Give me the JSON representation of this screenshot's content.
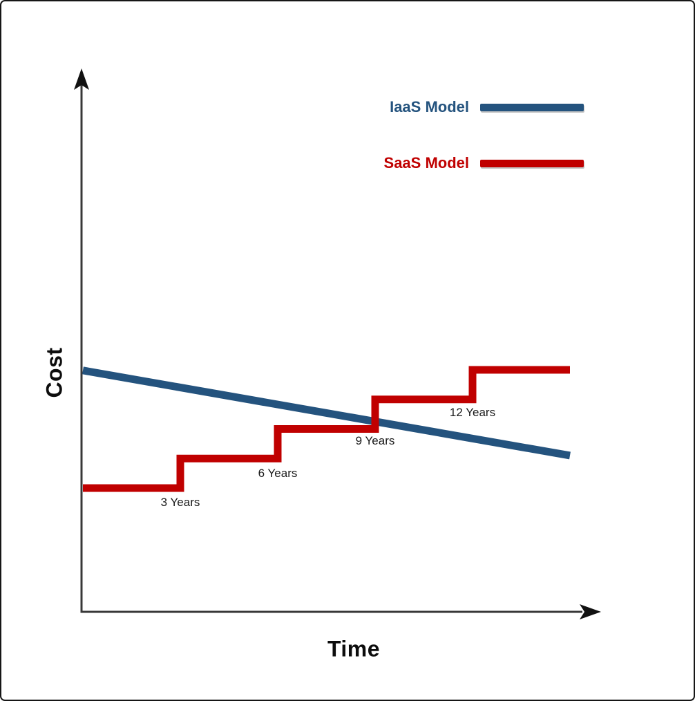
{
  "window": {
    "background": "#ffffff",
    "border_color": "#161616"
  },
  "chart_data": {
    "type": "line",
    "title": "",
    "xlabel": "Time",
    "ylabel": "Cost",
    "x_unit": "years",
    "xlim": [
      0,
      15
    ],
    "ylim": [
      0,
      5.6
    ],
    "grid": false,
    "legend_position": "top-right",
    "axis_color": "#383838",
    "arrow_color": "#111111",
    "series": [
      {
        "id": "iaas",
        "name": "IaaS Model",
        "color": "#24537E",
        "shape": "straight-declining",
        "points": [
          {
            "x": 0,
            "y": 4.98
          },
          {
            "x": 15,
            "y": 2.1
          }
        ]
      },
      {
        "id": "saas",
        "name": "SaaS Model",
        "color": "#C00000",
        "shape": "step-increasing",
        "points": [
          {
            "x": 0,
            "y": 1
          },
          {
            "x": 3,
            "y": 1
          },
          {
            "x": 3,
            "y": 2
          },
          {
            "x": 6,
            "y": 2
          },
          {
            "x": 6,
            "y": 3
          },
          {
            "x": 9,
            "y": 3
          },
          {
            "x": 9,
            "y": 4
          },
          {
            "x": 12,
            "y": 4
          },
          {
            "x": 12,
            "y": 5
          },
          {
            "x": 15,
            "y": 5
          }
        ]
      }
    ],
    "annotations": [
      {
        "label": "3 Years",
        "x": 3,
        "y": 0.51
      },
      {
        "label": "6 Years",
        "x": 6,
        "y": 1.49
      },
      {
        "label": "9 Years",
        "x": 9,
        "y": 2.59
      },
      {
        "label": "12 Years",
        "x": 12,
        "y": 3.55
      }
    ]
  }
}
